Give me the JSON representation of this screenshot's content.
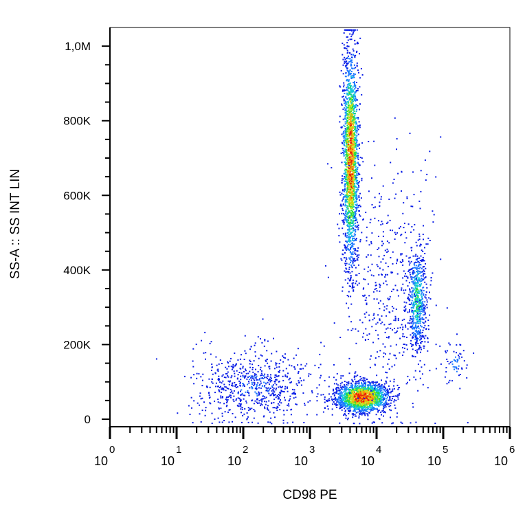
{
  "chart_data": {
    "type": "scatter",
    "subtype": "flow-cytometry-density-dot-plot",
    "xlabel": "CD98 PE",
    "ylabel": "SS-A :: SS INT LIN",
    "x_scale": "log",
    "y_scale": "linear",
    "xlim": [
      1,
      1000000
    ],
    "ylim": [
      0,
      1050000
    ],
    "x_tick_labels": [
      {
        "base": "10",
        "exp": "0",
        "value": 1
      },
      {
        "base": "10",
        "exp": "1",
        "value": 10
      },
      {
        "base": "10",
        "exp": "2",
        "value": 100
      },
      {
        "base": "10",
        "exp": "3",
        "value": 1000
      },
      {
        "base": "10",
        "exp": "4",
        "value": 10000
      },
      {
        "base": "10",
        "exp": "5",
        "value": 100000
      },
      {
        "base": "10",
        "exp": "6",
        "value": 1000000
      }
    ],
    "y_tick_labels": [
      {
        "label": "0",
        "value": 0
      },
      {
        "label": "200K",
        "value": 200000
      },
      {
        "label": "400K",
        "value": 400000
      },
      {
        "label": "600K",
        "value": 600000
      },
      {
        "label": "800K",
        "value": 800000
      },
      {
        "label": "1,0M",
        "value": 1000000
      }
    ],
    "color_scale": [
      "#0a1ee6",
      "#1e78ff",
      "#14c8dc",
      "#28dc3c",
      "#c8e61e",
      "#ffa00a",
      "#e61e0a"
    ],
    "populations": [
      {
        "center_x": 6000,
        "center_y": 60000,
        "spread_log_x": 0.2,
        "spread_y": 20000,
        "count": 1800,
        "peak_density": 1.0
      },
      {
        "center_x": 4000,
        "center_y": 700000,
        "spread_log_x": 0.06,
        "spread_y": 150000,
        "count": 2000,
        "peak_density": 0.9
      },
      {
        "center_x": 40000,
        "center_y": 320000,
        "spread_log_x": 0.07,
        "spread_y": 70000,
        "count": 600,
        "peak_density": 0.45
      },
      {
        "center_x": 150,
        "center_y": 90000,
        "spread_log_x": 0.45,
        "spread_y": 50000,
        "count": 700,
        "peak_density": 0.15
      },
      {
        "center_x": 15000,
        "center_y": 350000,
        "spread_log_x": 0.35,
        "spread_y": 200000,
        "count": 500,
        "peak_density": 0.12
      },
      {
        "center_x": 150000,
        "center_y": 150000,
        "spread_log_x": 0.1,
        "spread_y": 30000,
        "count": 60,
        "peak_density": 0.2
      }
    ],
    "grid": false,
    "legend": false
  }
}
